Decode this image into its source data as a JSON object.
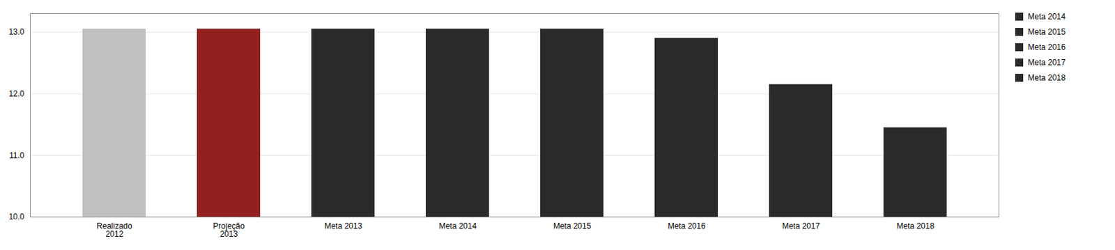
{
  "chart_data": {
    "type": "bar",
    "categories": [
      "Realizado\n2012",
      "Projeção\n2013",
      "Meta 2013",
      "Meta 2014",
      "Meta 2015",
      "Meta 2016",
      "Meta 2017",
      "Meta 2018"
    ],
    "values": [
      13.05,
      13.05,
      13.05,
      13.05,
      13.05,
      12.9,
      12.15,
      11.45
    ],
    "colors": [
      "#c0c0c0",
      "#912020",
      "#2a2a2a",
      "#2a2a2a",
      "#2a2a2a",
      "#2a2a2a",
      "#2a2a2a",
      "#2a2a2a"
    ],
    "ylim": [
      10,
      13.3
    ],
    "yticks": [
      10,
      11,
      12,
      13
    ],
    "grid": true,
    "legend": "right",
    "legend_entries": [
      "Meta 2014",
      "Meta 2015",
      "Meta 2016",
      "Meta 2017",
      "Meta 2018"
    ],
    "legend_color": "#2a2a2a"
  }
}
